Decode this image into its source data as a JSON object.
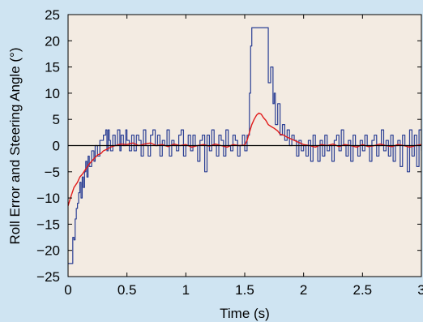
{
  "chart_data": {
    "type": "line",
    "title": "",
    "xlabel": "Time (s)",
    "ylabel": "Roll Error and Steering Angle (°)",
    "xlim": [
      0,
      3
    ],
    "ylim": [
      -25,
      25
    ],
    "xticks": [
      0,
      0.5,
      1,
      1.5,
      2,
      2.5,
      3
    ],
    "xtick_labels": [
      "0",
      "0.5",
      "1",
      "1.5",
      "2",
      "2.5",
      "3"
    ],
    "yticks": [
      -25,
      -20,
      -15,
      -10,
      -5,
      0,
      5,
      10,
      15,
      20,
      25
    ],
    "ytick_labels": [
      "−25",
      "−20",
      "−15",
      "−10",
      "−5",
      "0",
      "5",
      "10",
      "15",
      "20",
      "25"
    ],
    "grid": false,
    "plot_background": "#f3ebe2",
    "reference_line": {
      "y": 0,
      "color": "#000000"
    },
    "series": [
      {
        "color": "#2b3f94",
        "style": "step",
        "x": [
          0,
          0.04,
          0.05,
          0.06,
          0.07,
          0.08,
          0.09,
          0.1,
          0.11,
          0.12,
          0.13,
          0.14,
          0.15,
          0.16,
          0.17,
          0.18,
          0.2,
          0.22,
          0.23,
          0.25,
          0.27,
          0.3,
          0.32,
          0.33,
          0.34,
          0.35,
          0.36,
          0.38,
          0.4,
          0.42,
          0.44,
          0.45,
          0.47,
          0.49,
          0.5,
          0.52,
          0.54,
          0.56,
          0.58,
          0.6,
          0.62,
          0.64,
          0.66,
          0.68,
          0.7,
          0.72,
          0.74,
          0.76,
          0.78,
          0.8,
          0.82,
          0.84,
          0.86,
          0.88,
          0.9,
          0.92,
          0.94,
          0.96,
          0.98,
          1.0,
          1.02,
          1.04,
          1.06,
          1.08,
          1.1,
          1.12,
          1.14,
          1.16,
          1.18,
          1.2,
          1.22,
          1.24,
          1.26,
          1.28,
          1.3,
          1.32,
          1.34,
          1.36,
          1.38,
          1.4,
          1.42,
          1.44,
          1.46,
          1.48,
          1.5,
          1.52,
          1.54,
          1.55,
          1.56,
          1.58,
          1.6,
          1.62,
          1.64,
          1.66,
          1.68,
          1.7,
          1.72,
          1.74,
          1.75,
          1.76,
          1.78,
          1.8,
          1.82,
          1.84,
          1.86,
          1.88,
          1.9,
          1.92,
          1.94,
          1.96,
          1.98,
          2.0,
          2.02,
          2.04,
          2.06,
          2.08,
          2.1,
          2.12,
          2.14,
          2.16,
          2.18,
          2.2,
          2.22,
          2.24,
          2.26,
          2.28,
          2.3,
          2.32,
          2.34,
          2.36,
          2.38,
          2.4,
          2.42,
          2.44,
          2.46,
          2.48,
          2.5,
          2.52,
          2.54,
          2.56,
          2.58,
          2.6,
          2.62,
          2.64,
          2.66,
          2.68,
          2.7,
          2.72,
          2.74,
          2.76,
          2.78,
          2.8,
          2.82,
          2.84,
          2.86,
          2.88,
          2.9,
          2.92,
          2.94,
          2.96,
          2.98,
          3.0
        ],
        "y": [
          -22.5,
          -17.5,
          -18,
          -14,
          -12,
          -11,
          -9,
          -7,
          -10,
          -6,
          -8,
          -5,
          -3,
          -6,
          -2,
          -4,
          -1,
          -3,
          0,
          -2,
          1,
          2,
          3,
          -1,
          3,
          1,
          -1,
          2,
          0,
          3,
          -1,
          2,
          0,
          3,
          1,
          -1,
          2,
          -1,
          2,
          1,
          -2,
          3,
          0,
          -2,
          2,
          3,
          0,
          2,
          -2,
          1,
          0,
          3,
          -2,
          1,
          0,
          -1,
          2,
          3,
          -2,
          0,
          2,
          -1,
          2,
          0,
          -3,
          1,
          2,
          -5,
          2,
          -1,
          3,
          0,
          -2,
          2,
          1,
          -2,
          3,
          0,
          -1,
          2,
          1,
          -2,
          0,
          2,
          -1,
          2,
          10,
          19,
          22.5,
          22.5,
          22.5,
          22.5,
          22.5,
          22.5,
          22.5,
          12,
          15,
          8,
          10,
          4,
          8,
          2,
          4,
          1,
          3,
          0,
          2,
          1,
          -2,
          1,
          -1,
          0,
          -2,
          1,
          -3,
          2,
          0,
          -3,
          1,
          -2,
          2,
          -1,
          0,
          -3,
          1,
          2,
          -1,
          3,
          0,
          -2,
          1,
          -3,
          2,
          0,
          -2,
          1,
          -1,
          2,
          0,
          -3,
          1,
          2,
          -2,
          0,
          3,
          -1,
          1,
          -2,
          2,
          -3,
          0,
          1,
          -4,
          2,
          0,
          -5,
          3,
          -2,
          2,
          -4,
          3,
          -1
        ]
      },
      {
        "color": "#e01b1b",
        "style": "line",
        "x": [
          0,
          0.02,
          0.05,
          0.08,
          0.1,
          0.12,
          0.15,
          0.18,
          0.2,
          0.22,
          0.25,
          0.28,
          0.3,
          0.33,
          0.36,
          0.4,
          0.45,
          0.5,
          0.55,
          0.6,
          0.65,
          0.7,
          0.75,
          0.8,
          0.85,
          0.9,
          0.95,
          1.0,
          1.05,
          1.1,
          1.15,
          1.2,
          1.25,
          1.3,
          1.35,
          1.4,
          1.45,
          1.5,
          1.52,
          1.54,
          1.56,
          1.58,
          1.6,
          1.62,
          1.64,
          1.66,
          1.68,
          1.7,
          1.72,
          1.75,
          1.78,
          1.8,
          1.83,
          1.86,
          1.9,
          1.95,
          2.0,
          2.05,
          2.1,
          2.15,
          2.2,
          2.25,
          2.3,
          2.35,
          2.4,
          2.45,
          2.5,
          2.55,
          2.6,
          2.65,
          2.7,
          2.75,
          2.8,
          2.85,
          2.9,
          2.95,
          3.0
        ],
        "y": [
          -11.5,
          -10,
          -8,
          -7,
          -6,
          -5.5,
          -4.5,
          -3.5,
          -3,
          -2.5,
          -1.8,
          -1.5,
          -1,
          -0.7,
          -0.3,
          0,
          0.3,
          0.2,
          0.5,
          0,
          0.3,
          0.5,
          0,
          0.2,
          -0.2,
          0.3,
          0,
          0.2,
          -0.3,
          0,
          0.2,
          -0.1,
          0.3,
          0,
          -0.3,
          0.2,
          0,
          0.1,
          1,
          2.5,
          4,
          5,
          5.8,
          6.2,
          6,
          5.3,
          4.8,
          4,
          3.7,
          3.3,
          2.8,
          2.2,
          2,
          1.6,
          1.2,
          0.7,
          0.2,
          0,
          -0.3,
          0.2,
          0,
          0.3,
          -0.2,
          0.2,
          0,
          -0.3,
          0.2,
          -0.2,
          0,
          0.3,
          0,
          -0.2,
          0.2,
          0,
          -0.3,
          0,
          0.2
        ]
      }
    ]
  }
}
